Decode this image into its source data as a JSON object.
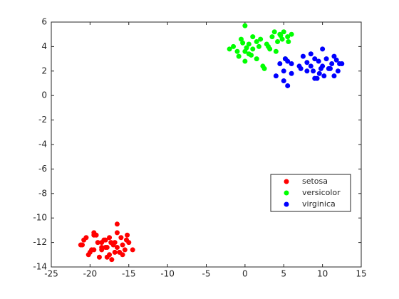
{
  "chart_data": {
    "type": "scatter",
    "xlim": [
      -25,
      15
    ],
    "ylim": [
      -14,
      6
    ],
    "xticks": [
      -25,
      -20,
      -15,
      -10,
      -5,
      0,
      5,
      10,
      15
    ],
    "yticks": [
      -14,
      -12,
      -10,
      -8,
      -6,
      -4,
      -2,
      0,
      2,
      4,
      6
    ],
    "legend": "east",
    "series": [
      {
        "name": "setosa",
        "color": "#ff0000",
        "x": [
          -20.5,
          -21,
          -20,
          -19.5,
          -19,
          -18.5,
          -18,
          -17.5,
          -17,
          -16.5,
          -16,
          -15.5,
          -15,
          -14.5,
          -20.8,
          -19.8,
          -18.8,
          -17.8,
          -16.8,
          -15.8,
          -19.2,
          -18.2,
          -17.2,
          -16.2,
          -15.2,
          -20.2,
          -19.5,
          -18.5,
          -17.5,
          -16.5,
          -16.5,
          -15.8,
          -17.8,
          -18.5,
          -19.5,
          -15.3,
          -16.8,
          -17.3,
          -18,
          -21.2
        ],
        "values": [
          -11.6,
          -12.2,
          -12.8,
          -11.2,
          -12,
          -12.6,
          -11.8,
          -13,
          -12.2,
          -10.5,
          -11.6,
          -12.6,
          -12,
          -12.6,
          -11.8,
          -12.6,
          -13.2,
          -12.4,
          -12,
          -13,
          -11.4,
          -11.8,
          -13.4,
          -12.8,
          -11.4,
          -13,
          -11.4,
          -12.4,
          -11.6,
          -12.4,
          -11.2,
          -12.2,
          -13.2,
          -12,
          -12.6,
          -11.8,
          -12.8,
          -12,
          -12.4,
          -12.2
        ]
      },
      {
        "name": "versicolor",
        "color": "#00ff00",
        "x": [
          -2,
          -1.5,
          -1,
          -0.5,
          0,
          0.5,
          1,
          1.5,
          2,
          2.5,
          3,
          3.5,
          4,
          4.5,
          5,
          5.5,
          6,
          0,
          0.5,
          1.5,
          -0.8,
          0.2,
          2.8,
          3.8,
          4.8,
          5.2,
          4.2,
          1,
          1.8,
          -0.3,
          0.8,
          2.3,
          3.2,
          4.6,
          5.6,
          0
        ],
        "values": [
          3.8,
          4,
          3.6,
          4.6,
          5.7,
          4.2,
          3.8,
          4.4,
          4.6,
          2.2,
          4,
          4.8,
          3.6,
          5,
          5.2,
          4.8,
          5,
          2.8,
          3.4,
          3,
          3.2,
          3.9,
          4.2,
          5.2,
          4.6,
          3,
          4.4,
          4.8,
          4,
          4.3,
          3.3,
          2.4,
          3.8,
          4.9,
          4.4,
          3.6
        ]
      },
      {
        "name": "virginica",
        "color": "#0000ff",
        "x": [
          4,
          4.5,
          5,
          5.5,
          6,
          6,
          7,
          7.5,
          8,
          8.5,
          9,
          9.5,
          10,
          10.5,
          11,
          11.5,
          12,
          12.5,
          5,
          5.5,
          8.5,
          9,
          9.8,
          10.2,
          11.2,
          11.8,
          8,
          9.3,
          10.8,
          12.2,
          5.2,
          7.2,
          8.8,
          9.6,
          11.5,
          10
        ],
        "values": [
          1.6,
          2.6,
          1.2,
          0.8,
          2.6,
          1.8,
          2.4,
          3.2,
          2,
          3.4,
          1.4,
          2.8,
          3.8,
          3,
          2.2,
          3.2,
          2,
          2.6,
          2,
          2.8,
          2.4,
          3,
          2.2,
          1.6,
          2.6,
          2.9,
          2.7,
          1.4,
          2.2,
          2.6,
          3,
          2.2,
          2,
          1.8,
          1.6,
          2.4
        ]
      }
    ]
  }
}
